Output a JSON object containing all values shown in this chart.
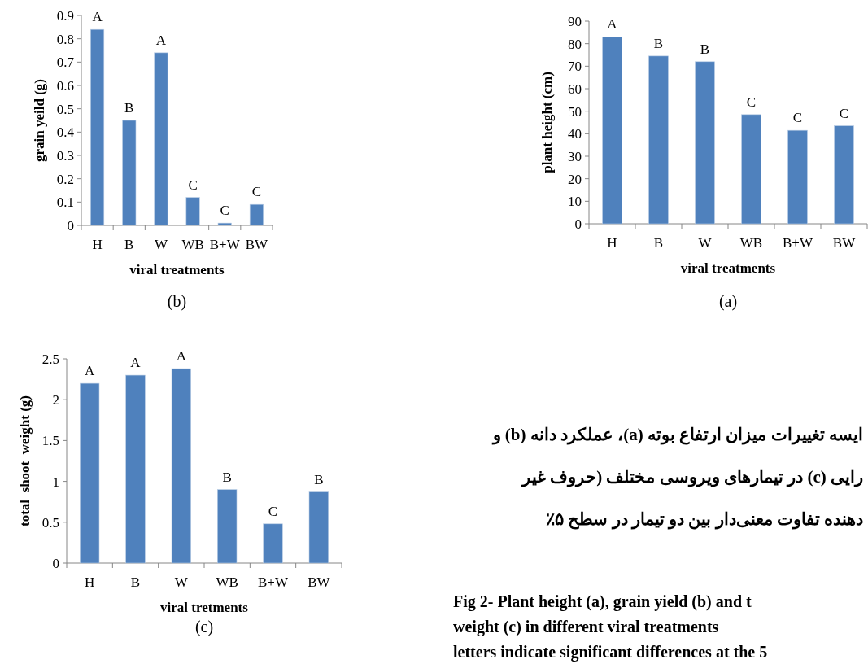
{
  "chart_data": [
    {
      "type": "bar",
      "categories": [
        "H",
        "B",
        "W",
        "WB",
        "B+W",
        "BW"
      ],
      "values": [
        0.84,
        0.45,
        0.74,
        0.12,
        0.01,
        0.09
      ],
      "color": "#4f81bd",
      "value_labels": [
        "A",
        "B",
        "A",
        "C",
        "C",
        "C"
      ],
      "ylim": [
        0,
        0.9
      ],
      "yticks": [
        0,
        0.1,
        0.2,
        0.3,
        0.4,
        0.5,
        0.6,
        0.7,
        0.8,
        0.9
      ],
      "ylabel": "grain yeild (g)",
      "xlabel": "viral treatments",
      "annotations": [
        "(b)"
      ]
    },
    {
      "type": "bar",
      "categories": [
        "H",
        "B",
        "W",
        "WB",
        "B+W",
        "BW"
      ],
      "values": [
        83,
        74.5,
        72,
        48.5,
        41.5,
        43.5
      ],
      "color": "#4f81bd",
      "value_labels": [
        "A",
        "B",
        "B",
        "C",
        "C",
        "C"
      ],
      "ylim": [
        0,
        90
      ],
      "yticks": [
        0,
        10,
        20,
        30,
        40,
        50,
        60,
        70,
        80,
        90
      ],
      "ylabel": "plant height (cm)",
      "xlabel": "viral treatments",
      "annotations": [
        "(a)"
      ]
    },
    {
      "type": "bar",
      "categories": [
        "H",
        "B",
        "W",
        "WB",
        "B+W",
        "BW"
      ],
      "values": [
        2.2,
        2.3,
        2.38,
        0.9,
        0.48,
        0.87
      ],
      "color": "#4f81bd",
      "value_labels": [
        "A",
        "A",
        "A",
        "B",
        "C",
        "B"
      ],
      "ylim": [
        0,
        2.5
      ],
      "yticks": [
        0,
        0.5,
        1,
        1.5,
        2,
        2.5
      ],
      "ylabel": "total  shoot  weight (g)",
      "xlabel": "viral tretments",
      "annotations": [
        "(c)"
      ]
    },
    {
      "type": "other",
      "annotations": [
        "ایسه تغییرات میزان ارتفاع بوته (a)، عملکرد دانه (b) و",
        "رایی (c) در تیمارهای ویروسی مختلف (حروف غیر",
        "دهنده تفاوت معنی‌دار بین دو تیمار در سطح ۵٪",
        "Fig 2- Plant height (a), grain yield (b) and t",
        "weight (c) in different viral treatments",
        "letters indicate significant differences at the 5"
      ]
    }
  ]
}
